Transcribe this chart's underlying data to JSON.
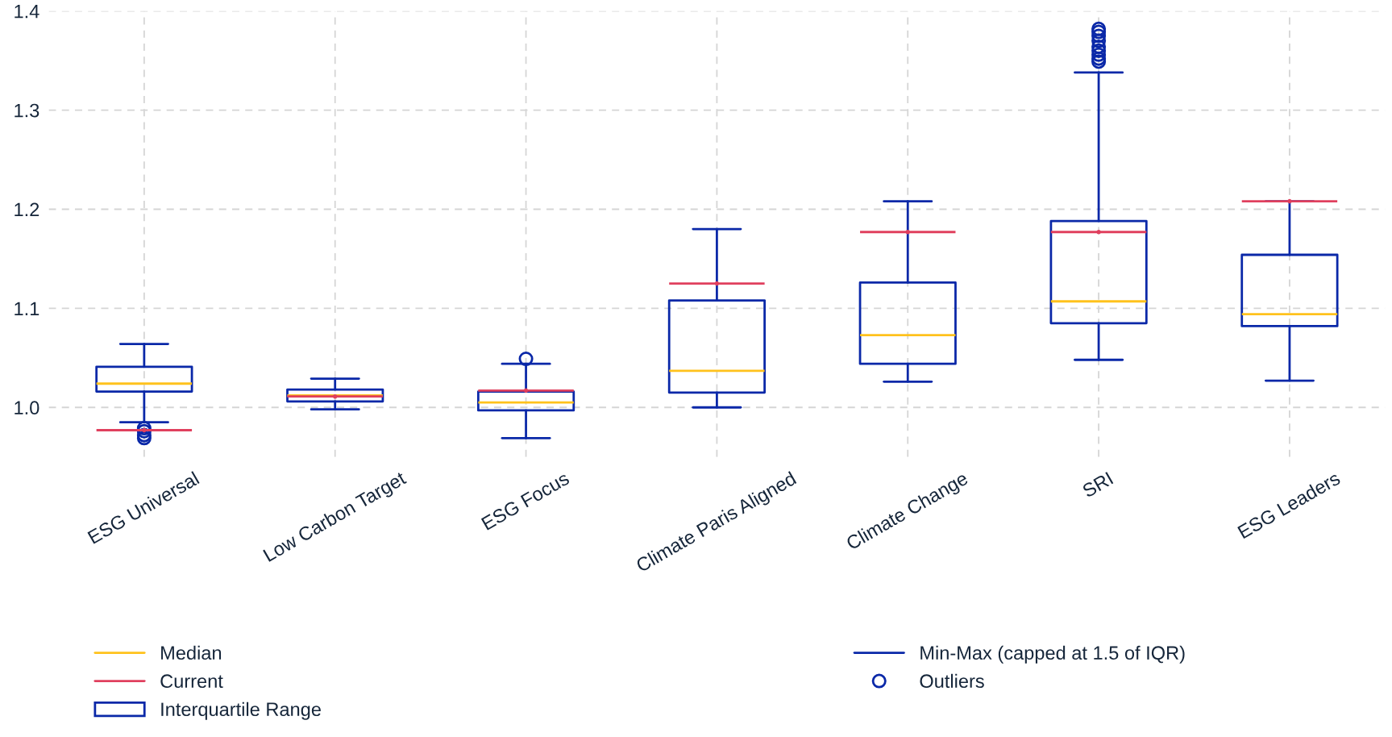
{
  "chart_data": {
    "type": "box",
    "categories": [
      "ESG Universal",
      "Low Carbon Target",
      "ESG Focus",
      "Climate Paris Aligned",
      "Climate Change",
      "SRI",
      "ESG Leaders"
    ],
    "ylim": [
      0.95,
      1.4
    ],
    "yticks": [
      {
        "value": 1.0,
        "label": "1.0"
      },
      1.1,
      1.2,
      1.3,
      1.4
    ],
    "grid": true,
    "legend": "bottom",
    "series": [
      {
        "name": "Interquartile Range",
        "color": "#0a28a8",
        "boxes": [
          {
            "low": 0.985,
            "q1": 1.016,
            "median": 1.024,
            "q3": 1.041,
            "high": 1.064,
            "outliers": [
              0.979,
              0.976,
              0.972,
              0.969
            ]
          },
          {
            "low": 0.998,
            "q1": 1.006,
            "median": 1.012,
            "q3": 1.018,
            "high": 1.029
          },
          {
            "low": 0.969,
            "q1": 0.997,
            "median": 1.005,
            "q3": 1.016,
            "high": 1.044,
            "outliers": [
              1.049
            ]
          },
          {
            "low": 1.0,
            "q1": 1.015,
            "median": 1.037,
            "q3": 1.108,
            "high": 1.18
          },
          {
            "low": 1.026,
            "q1": 1.044,
            "median": 1.073,
            "q3": 1.126,
            "high": 1.208
          },
          {
            "low": 1.048,
            "q1": 1.085,
            "median": 1.107,
            "q3": 1.188,
            "high": 1.338,
            "outliers": [
              1.349,
              1.352,
              1.356,
              1.36,
              1.364,
              1.37,
              1.375,
              1.379,
              1.382
            ]
          },
          {
            "low": 1.027,
            "q1": 1.082,
            "median": 1.094,
            "q3": 1.154,
            "high": 1.208
          }
        ]
      },
      {
        "type": "scatter",
        "name": "Current",
        "color": "#e0405e",
        "x": [
          "ESG Universal",
          "Low Carbon Target",
          "ESG Focus",
          "Climate Paris Aligned",
          "Climate Change",
          "SRI",
          "ESG Leaders"
        ],
        "values": [
          0.977,
          1.011,
          1.017,
          1.125,
          1.177,
          1.177,
          1.208
        ]
      }
    ],
    "annotations": [
      "Median",
      "Min-Max (capped at 1.5 of IQR)",
      "Outliers"
    ]
  }
}
